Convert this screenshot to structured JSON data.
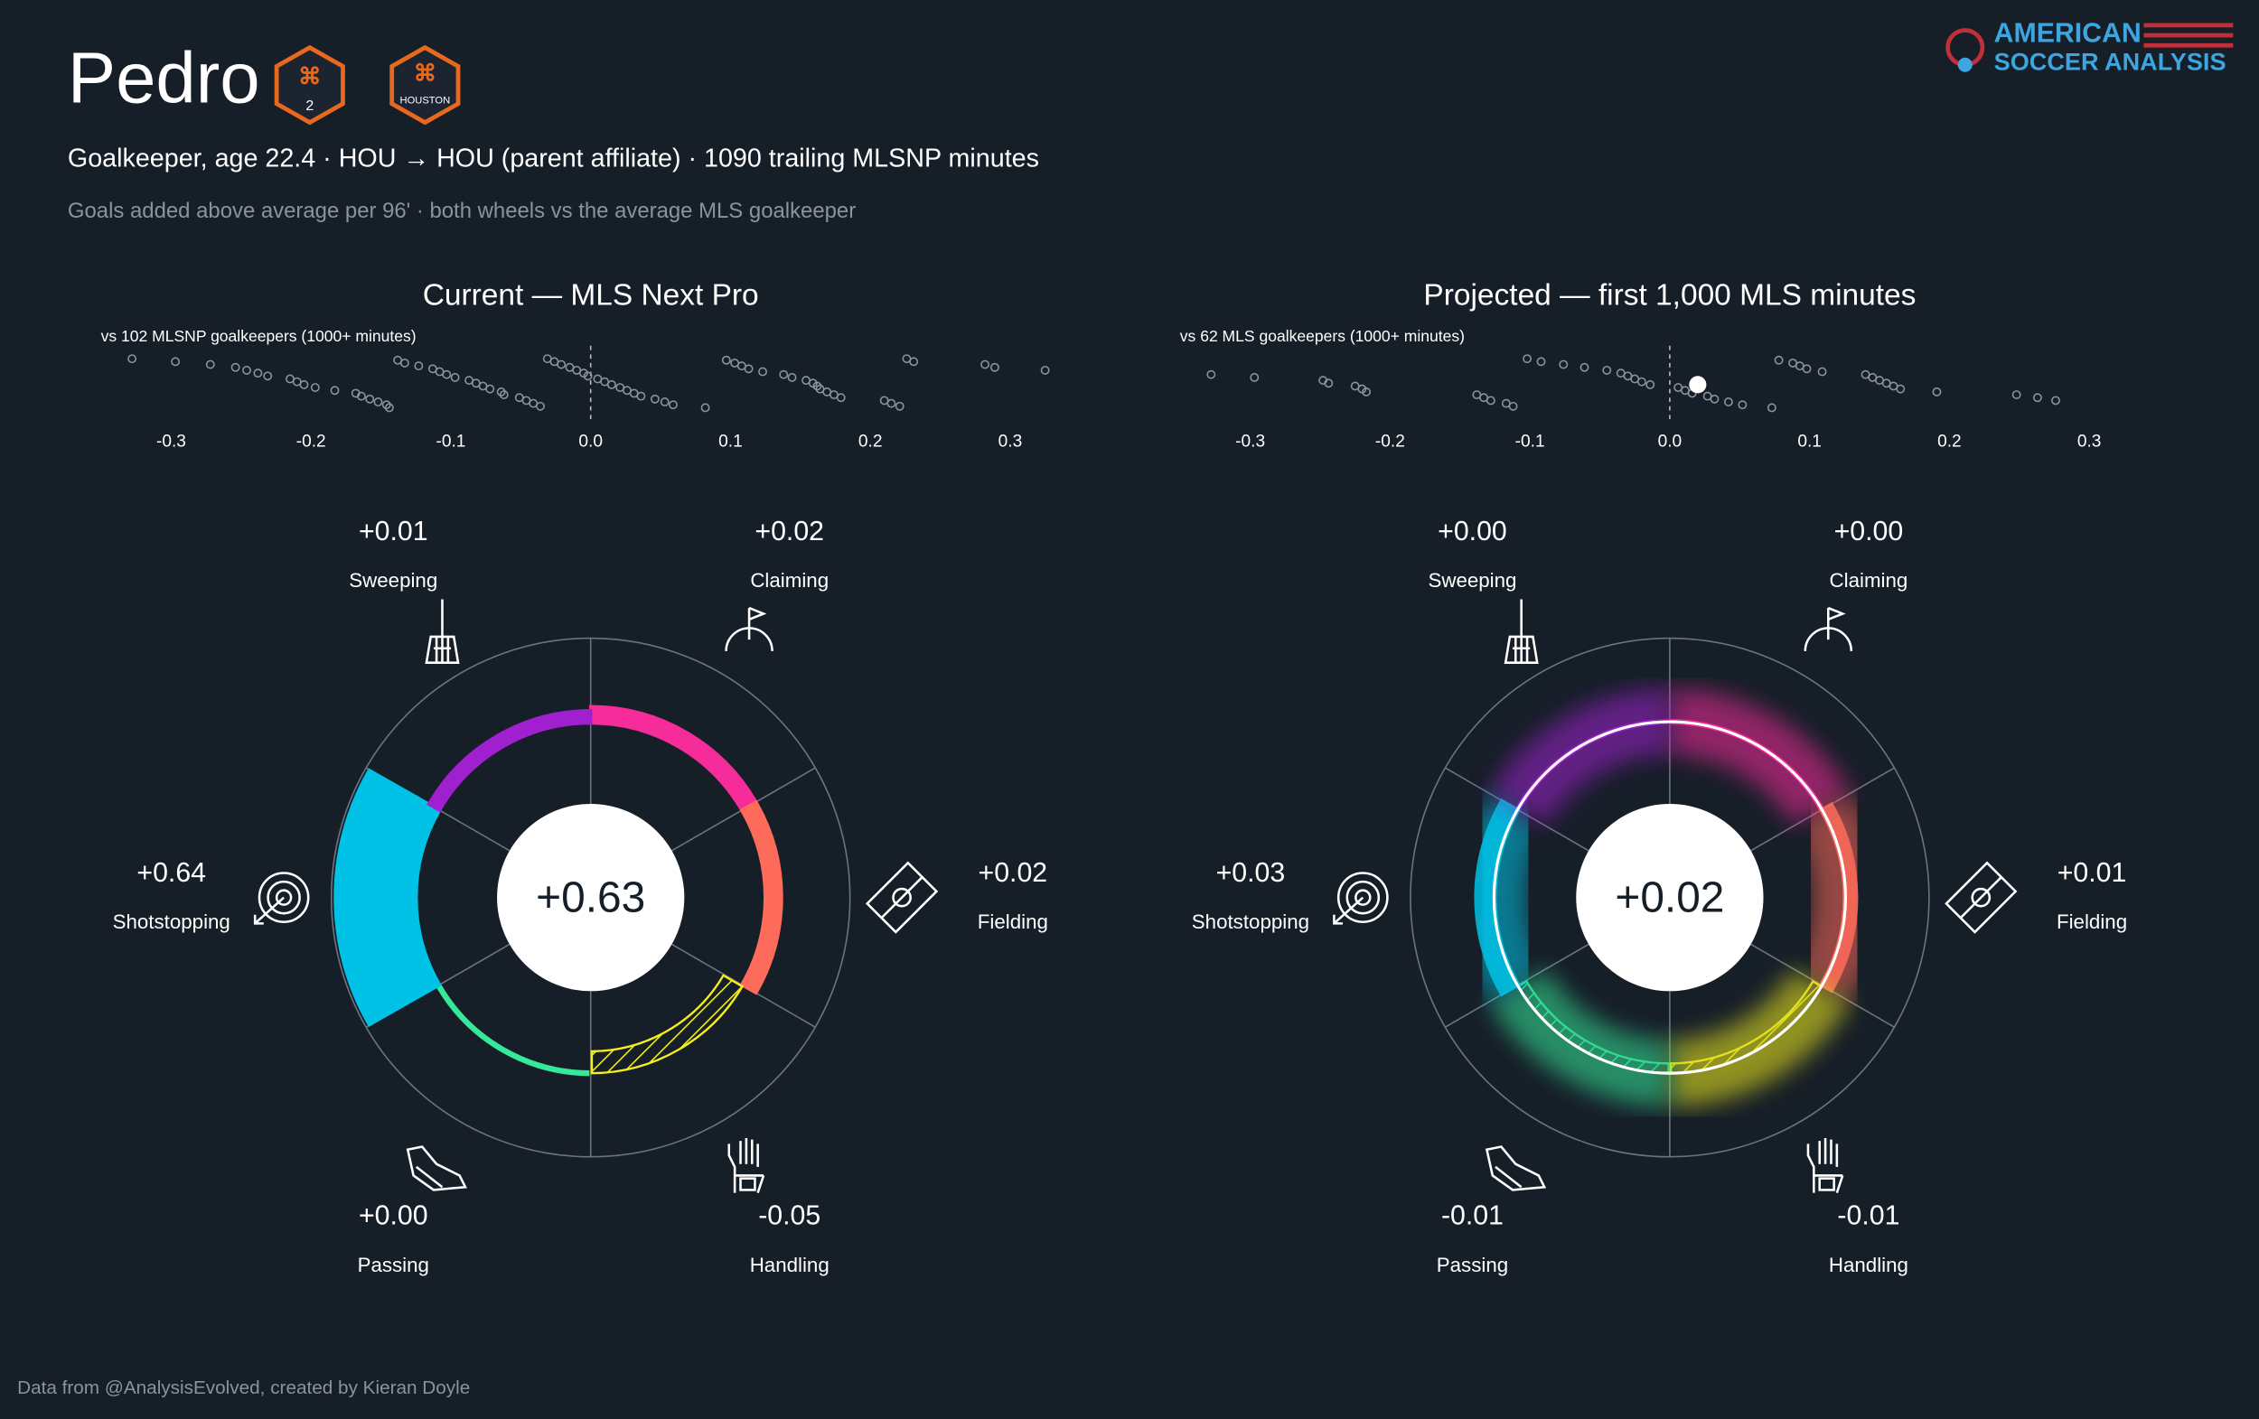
{
  "header": {
    "title": "Pedro",
    "subtitle": "Goalkeeper, age 22.4 · HOU → HOU (parent affiliate) · 1090 trailing MLSNP minutes",
    "note": "Goals added above average per 96' · both wheels vs the average MLS goalkeeper",
    "badges": [
      "2",
      "HOUSTON"
    ],
    "logo": [
      "AMERICAN",
      "SOCCER ANALYSIS"
    ],
    "footer": "Data from @AnalysisEvolved, created by Kieran Doyle"
  },
  "chart_data": [
    {
      "type": "wheel",
      "title": "Current — MLS Next Pro",
      "style": "solid",
      "categories": [
        "Claiming",
        "Fielding",
        "Handling",
        "Passing",
        "Shotstopping",
        "Sweeping"
      ],
      "colors": [
        "#f72c9b",
        "#ff6b5b",
        "#f4f01c",
        "#35e89a",
        "#00c2e6",
        "#a020d0"
      ],
      "values": [
        0.02,
        0.02,
        -0.05,
        0.0,
        0.64,
        0.01
      ],
      "value_labels": [
        "+0.02",
        "+0.02",
        "-0.05",
        "+0.00",
        "+0.64",
        "+0.01"
      ],
      "total": {
        "value": 0.63,
        "label": "+0.63"
      },
      "strip": {
        "label": "vs 102 MLSNP goalkeepers (1000+ minutes)",
        "xlim": [
          -0.34,
          0.34
        ],
        "xticks": [
          -0.3,
          -0.2,
          -0.1,
          {
            "value": 0,
            "label": "0.0"
          },
          0.1,
          0.2,
          0.3
        ],
        "values": [
          -0.328,
          -0.297,
          -0.272,
          -0.254,
          -0.246,
          -0.238,
          -0.231,
          -0.215,
          -0.21,
          -0.205,
          -0.197,
          -0.183,
          -0.168,
          -0.164,
          -0.158,
          -0.152,
          -0.146,
          -0.144,
          -0.138,
          -0.133,
          -0.123,
          -0.113,
          -0.108,
          -0.103,
          -0.097,
          -0.087,
          -0.082,
          -0.077,
          -0.072,
          -0.064,
          -0.062,
          -0.051,
          -0.046,
          -0.041,
          -0.036,
          -0.031,
          -0.026,
          -0.021,
          -0.015,
          -0.01,
          -0.005,
          -0.002,
          0.005,
          0.01,
          0.015,
          0.021,
          0.026,
          0.031,
          0.036,
          0.046,
          0.053,
          0.059,
          0.082,
          0.097,
          0.103,
          0.108,
          0.113,
          0.123,
          0.138,
          0.144,
          0.154,
          0.159,
          0.162,
          0.164,
          0.169,
          0.174,
          0.179,
          0.21,
          0.215,
          0.221,
          0.226,
          0.231,
          0.282,
          0.289,
          0.325
        ]
      }
    },
    {
      "type": "wheel",
      "title": "Projected — first 1,000 MLS minutes",
      "style": "glow",
      "categories": [
        "Claiming",
        "Fielding",
        "Handling",
        "Passing",
        "Shotstopping",
        "Sweeping"
      ],
      "colors": [
        "#f72c9b",
        "#ff6b5b",
        "#f4f01c",
        "#35e89a",
        "#00c2e6",
        "#a020d0"
      ],
      "values": [
        0.0,
        0.01,
        -0.01,
        -0.01,
        0.03,
        0.0
      ],
      "value_labels": [
        "+0.00",
        "+0.01",
        "-0.01",
        "-0.01",
        "+0.03",
        "+0.00"
      ],
      "total": {
        "value": 0.02,
        "label": "+0.02"
      },
      "strip": {
        "label": "vs 62 MLS goalkeepers (1000+ minutes)",
        "xlim": [
          -0.34,
          0.34
        ],
        "xticks": [
          -0.3,
          -0.2,
          -0.1,
          {
            "value": 0,
            "label": "0.0"
          },
          0.1,
          0.2,
          0.3
        ],
        "values": [
          -0.328,
          -0.297,
          -0.248,
          -0.244,
          -0.225,
          -0.22,
          -0.217,
          -0.138,
          -0.133,
          -0.128,
          -0.117,
          -0.112,
          -0.102,
          -0.092,
          -0.076,
          -0.061,
          -0.045,
          -0.035,
          -0.03,
          -0.025,
          -0.02,
          -0.014,
          0.006,
          0.011,
          0.016,
          0.027,
          0.032,
          0.042,
          0.052,
          0.073,
          0.078,
          0.088,
          0.093,
          0.098,
          0.109,
          0.14,
          0.145,
          0.15,
          0.155,
          0.16,
          0.165,
          0.191,
          0.248,
          0.263,
          0.276
        ]
      }
    }
  ]
}
